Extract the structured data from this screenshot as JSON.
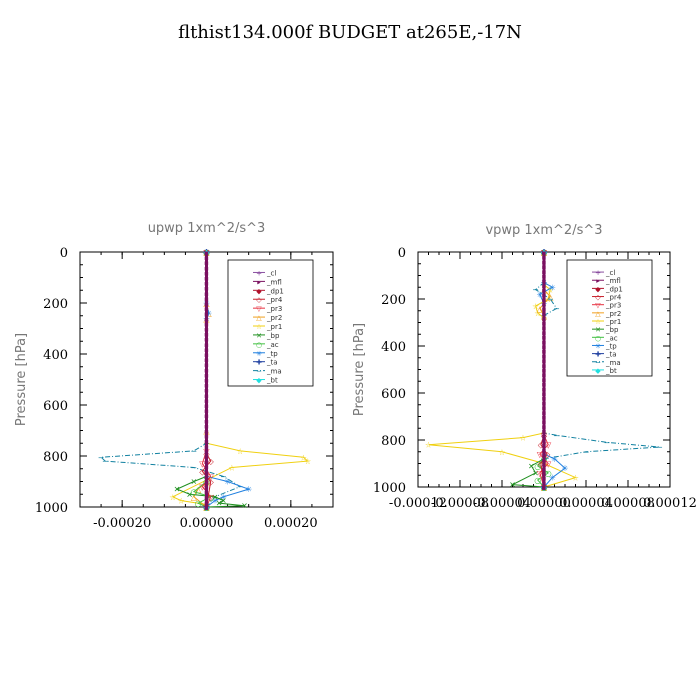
{
  "page": {
    "title": "flthist134.000f  BUDGET at265E,-17N"
  },
  "colors": {
    "_cl": "#8a4fa0",
    "_mfl": "#7a1060",
    "_dp1": "#b0102a",
    "_pr4": "#c8202c",
    "_pr3": "#e83040",
    "_pr2": "#f0a020",
    "_pr1": "#f0d010",
    "_bp": "#209020",
    "_ac": "#40c040",
    "_tp": "#2080e0",
    "_ta": "#2040a0",
    "_ma": "#1080a0",
    "_bt": "#20e0e0"
  },
  "chart_data": [
    {
      "type": "line",
      "title": "upwp   1xm^2/s^3",
      "ylabel": "Pressure [hPa]",
      "xlim": [
        -0.0003,
        0.0003
      ],
      "ylim": [
        1000,
        0
      ],
      "xticks": [
        -0.0002,
        0,
        0.0002
      ],
      "xtick_labels": [
        "-0.00020",
        "0.00000",
        "0.00020"
      ],
      "yticks": [
        0,
        200,
        400,
        600,
        800,
        1000
      ],
      "ytick_labels": [
        "0",
        "200",
        "400",
        "600",
        "800",
        "1000"
      ],
      "legend": {
        "placement": "top-right",
        "entries": [
          "_cl",
          "_mfl",
          "_dp1",
          "_pr4",
          "_pr3",
          "_pr2",
          "_pr1",
          "_bp",
          "_ac",
          "_tp",
          "_ta",
          "_ma",
          "_bt"
        ]
      },
      "series": [
        {
          "name": "_pr1",
          "x": [
            0,
            0,
            8e-05,
            0.00023,
            0.00024,
            6e-05,
            -8e-05,
            -6e-05,
            0,
            0
          ],
          "y": [
            0,
            750,
            780,
            805,
            820,
            845,
            960,
            975,
            990,
            1000
          ]
        },
        {
          "name": "_pr2",
          "x": [
            0,
            0,
            5e-06,
            0,
            0,
            0,
            -2e-05,
            -3e-05,
            0
          ],
          "y": [
            0,
            200,
            240,
            260,
            700,
            900,
            930,
            960,
            1000
          ]
        },
        {
          "name": "_ma",
          "x": [
            0,
            0,
            -3e-05,
            -0.00025,
            -0.00024,
            -3e-05,
            4e-05,
            8e-05,
            2e-05,
            0
          ],
          "y": [
            0,
            750,
            780,
            805,
            820,
            845,
            880,
            920,
            960,
            1000
          ]
        },
        {
          "name": "_tp",
          "x": [
            0,
            0,
            5e-06,
            0,
            0,
            5e-05,
            0.0001,
            4e-05,
            2e-05,
            0
          ],
          "y": [
            0,
            200,
            240,
            260,
            880,
            900,
            930,
            960,
            975,
            1000
          ]
        },
        {
          "name": "_bp",
          "x": [
            0,
            0,
            -3e-05,
            -7e-05,
            -4e-05,
            2e-05,
            4e-05,
            3e-05,
            9e-05,
            0
          ],
          "y": [
            0,
            880,
            900,
            930,
            950,
            960,
            975,
            985,
            995,
            1000
          ]
        },
        {
          "name": "_ac",
          "x": [
            0,
            0,
            -3e-05,
            1e-05,
            -2e-05,
            0
          ],
          "y": [
            0,
            900,
            940,
            960,
            985,
            1000
          ]
        },
        {
          "name": "_pr3",
          "x": [
            0,
            0,
            -1e-05,
            1e-05,
            -1e-05,
            1e-05,
            0
          ],
          "y": [
            0,
            780,
            830,
            880,
            920,
            960,
            1000
          ]
        },
        {
          "name": "_pr4",
          "x": [
            0,
            0,
            1e-05,
            -1e-05,
            1e-05,
            0
          ],
          "y": [
            0,
            790,
            820,
            860,
            900,
            1000
          ]
        },
        {
          "name": "_dp1",
          "x": [
            0,
            0
          ],
          "y": [
            0,
            1000
          ]
        },
        {
          "name": "_ta",
          "x": [
            0,
            0
          ],
          "y": [
            0,
            1000
          ]
        },
        {
          "name": "_cl",
          "x": [
            0,
            0
          ],
          "y": [
            0,
            1000
          ]
        },
        {
          "name": "_bt",
          "x": [
            0,
            0
          ],
          "y": [
            0,
            1000
          ]
        },
        {
          "name": "_mfl",
          "x": [
            0,
            0
          ],
          "y": [
            0,
            1000
          ]
        }
      ]
    },
    {
      "type": "line",
      "title": "vpwp   1xm^2/s^3",
      "ylabel": "Pressure [hPa]",
      "xlim": [
        -0.00012,
        0.00012
      ],
      "ylim": [
        1000,
        0
      ],
      "xticks": [
        -0.00012,
        -8e-05,
        -4e-05,
        0,
        4e-05,
        8e-05,
        0.00012
      ],
      "xtick_labels": [
        "-0.00012",
        "-0.00008",
        "-0.00004",
        "0.00000",
        "0.00004",
        "0.00008",
        "0.00012"
      ],
      "yticks": [
        0,
        200,
        400,
        600,
        800,
        1000
      ],
      "ytick_labels": [
        "0",
        "200",
        "400",
        "600",
        "800",
        "1000"
      ],
      "legend": {
        "placement": "top-right",
        "entries": [
          "_cl",
          "_mfl",
          "_dp1",
          "_pr4",
          "_pr3",
          "_pr2",
          "_pr1",
          "_bp",
          "_ac",
          "_tp",
          "_ta",
          "_ma",
          "_bt"
        ]
      },
      "series": [
        {
          "name": "_pr1",
          "x": [
            0,
            0,
            6e-06,
            4e-06,
            -8e-06,
            -6e-06,
            0,
            0,
            -2e-05,
            -0.00011,
            -4e-05,
            0,
            3e-05,
            0
          ],
          "y": [
            0,
            140,
            160,
            200,
            230,
            260,
            280,
            770,
            790,
            820,
            850,
            900,
            960,
            1000
          ]
        },
        {
          "name": "_pr2",
          "x": [
            0,
            0,
            6e-06,
            -4e-06,
            0,
            0
          ],
          "y": [
            0,
            160,
            190,
            240,
            270,
            1000
          ]
        },
        {
          "name": "_ma",
          "x": [
            0,
            0,
            -8e-06,
            6e-06,
            1.2e-05,
            0,
            0,
            1.2e-05,
            6e-05,
            0.00011,
            4e-05,
            0,
            0
          ],
          "y": [
            0,
            130,
            160,
            200,
            240,
            270,
            770,
            780,
            810,
            830,
            850,
            880,
            1000
          ]
        },
        {
          "name": "_tp",
          "x": [
            0,
            0,
            8e-06,
            -4e-06,
            0,
            0,
            1e-05,
            2e-05,
            8e-06,
            0
          ],
          "y": [
            0,
            130,
            150,
            180,
            220,
            860,
            880,
            920,
            960,
            1000
          ]
        },
        {
          "name": "_bp",
          "x": [
            0,
            0,
            -1.2e-05,
            -8e-06,
            -3e-05,
            0
          ],
          "y": [
            0,
            880,
            910,
            940,
            990,
            1000
          ]
        },
        {
          "name": "_ac",
          "x": [
            0,
            0,
            -6e-06,
            4e-06,
            -6e-06,
            0
          ],
          "y": [
            0,
            880,
            910,
            940,
            970,
            1000
          ]
        },
        {
          "name": "_pr3",
          "x": [
            0,
            0,
            4e-06,
            -4e-06,
            4e-06,
            -4e-06,
            0
          ],
          "y": [
            0,
            780,
            820,
            860,
            900,
            940,
            1000
          ]
        },
        {
          "name": "_pr4",
          "x": [
            0,
            0,
            -3e-06,
            3e-06,
            -3e-06,
            0
          ],
          "y": [
            0,
            780,
            820,
            860,
            900,
            1000
          ]
        },
        {
          "name": "_dp1",
          "x": [
            0,
            0
          ],
          "y": [
            0,
            1000
          ]
        },
        {
          "name": "_ta",
          "x": [
            0,
            0
          ],
          "y": [
            0,
            1000
          ]
        },
        {
          "name": "_cl",
          "x": [
            0,
            0
          ],
          "y": [
            0,
            1000
          ]
        },
        {
          "name": "_bt",
          "x": [
            0,
            0
          ],
          "y": [
            0,
            1000
          ]
        },
        {
          "name": "_mfl",
          "x": [
            0,
            0
          ],
          "y": [
            0,
            1000
          ]
        }
      ]
    }
  ]
}
